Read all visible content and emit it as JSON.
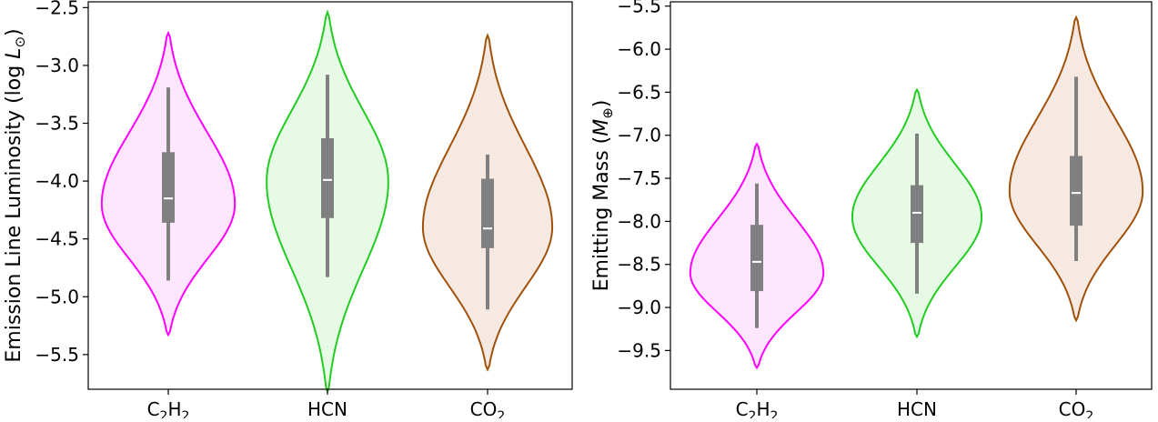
{
  "chart_data": [
    {
      "type": "violin",
      "ylabel_main": "Emission Line Luminosity (log ",
      "ylabel_sym": "L",
      "ylabel_sub": "⊙",
      "ylabel_end": ")",
      "ylim": [
        -5.8,
        -2.45
      ],
      "yticks": [
        -2.5,
        -3.0,
        -3.5,
        -4.0,
        -4.5,
        -5.0,
        -5.5
      ],
      "ytick_labels": [
        "−2.5",
        "−3.0",
        "−3.5",
        "−4.0",
        "−4.5",
        "−5.0",
        "−5.5"
      ],
      "categories": [
        {
          "main": "C",
          "sub1": "2",
          "mid": "H",
          "sub2": "2"
        },
        {
          "main": "HCN",
          "sub1": "",
          "mid": "",
          "sub2": ""
        },
        {
          "main": "CO",
          "sub1": "2",
          "mid": "",
          "sub2": ""
        }
      ],
      "violins": [
        {
          "min": -5.33,
          "max": -2.72,
          "q1": -4.36,
          "median": -4.15,
          "q3": -3.75,
          "whisker_low": -4.86,
          "whisker_high": -3.19,
          "mode": -4.2,
          "half_width": 0.68
        },
        {
          "min": -5.82,
          "max": -2.54,
          "q1": -4.32,
          "median": -3.99,
          "q3": -3.63,
          "whisker_low": -4.83,
          "whisker_high": -3.08,
          "mode": -4.0,
          "half_width": 0.62
        },
        {
          "min": -5.63,
          "max": -2.74,
          "q1": -4.58,
          "median": -4.41,
          "q3": -3.98,
          "whisker_low": -5.11,
          "whisker_high": -3.77,
          "mode": -4.4,
          "half_width": 0.66
        }
      ]
    },
    {
      "type": "violin",
      "ylabel_main": "Emitting Mass (",
      "ylabel_sym": "M",
      "ylabel_sub": "⊕",
      "ylabel_end": ")",
      "ylim": [
        -9.95,
        -5.45
      ],
      "yticks": [
        -5.5,
        -6.0,
        -6.5,
        -7.0,
        -7.5,
        -8.0,
        -8.5,
        -9.0,
        -9.5
      ],
      "ytick_labels": [
        "−5.5",
        "−6.0",
        "−6.5",
        "−7.0",
        "−7.5",
        "−8.0",
        "−8.5",
        "−9.0",
        "−9.5"
      ],
      "categories": [
        {
          "main": "C",
          "sub1": "2",
          "mid": "H",
          "sub2": "2"
        },
        {
          "main": "HCN",
          "sub1": "",
          "mid": "",
          "sub2": ""
        },
        {
          "main": "CO",
          "sub1": "2",
          "mid": "",
          "sub2": ""
        }
      ],
      "violins": [
        {
          "min": -9.7,
          "max": -7.1,
          "q1": -8.81,
          "median": -8.47,
          "q3": -8.04,
          "whisker_low": -9.24,
          "whisker_high": -7.56,
          "mode": -8.6,
          "half_width": 0.68
        },
        {
          "min": -9.34,
          "max": -6.47,
          "q1": -8.25,
          "median": -7.9,
          "q3": -7.58,
          "whisker_low": -8.84,
          "whisker_high": -6.98,
          "mode": -7.95,
          "half_width": 0.66
        },
        {
          "min": -9.15,
          "max": -5.63,
          "q1": -8.05,
          "median": -7.67,
          "q3": -7.24,
          "whisker_low": -8.46,
          "whisker_high": -6.32,
          "mode": -7.65,
          "half_width": 0.68
        }
      ]
    }
  ],
  "series_colors": [
    {
      "edge": "#ff00ff",
      "fill": "#ffe6ff"
    },
    {
      "edge": "#22cc22",
      "fill": "#e6fae6"
    },
    {
      "edge": "#a0520d",
      "fill": "#f5e9e1"
    }
  ],
  "box_color": "#808080",
  "median_color": "#ffffff"
}
